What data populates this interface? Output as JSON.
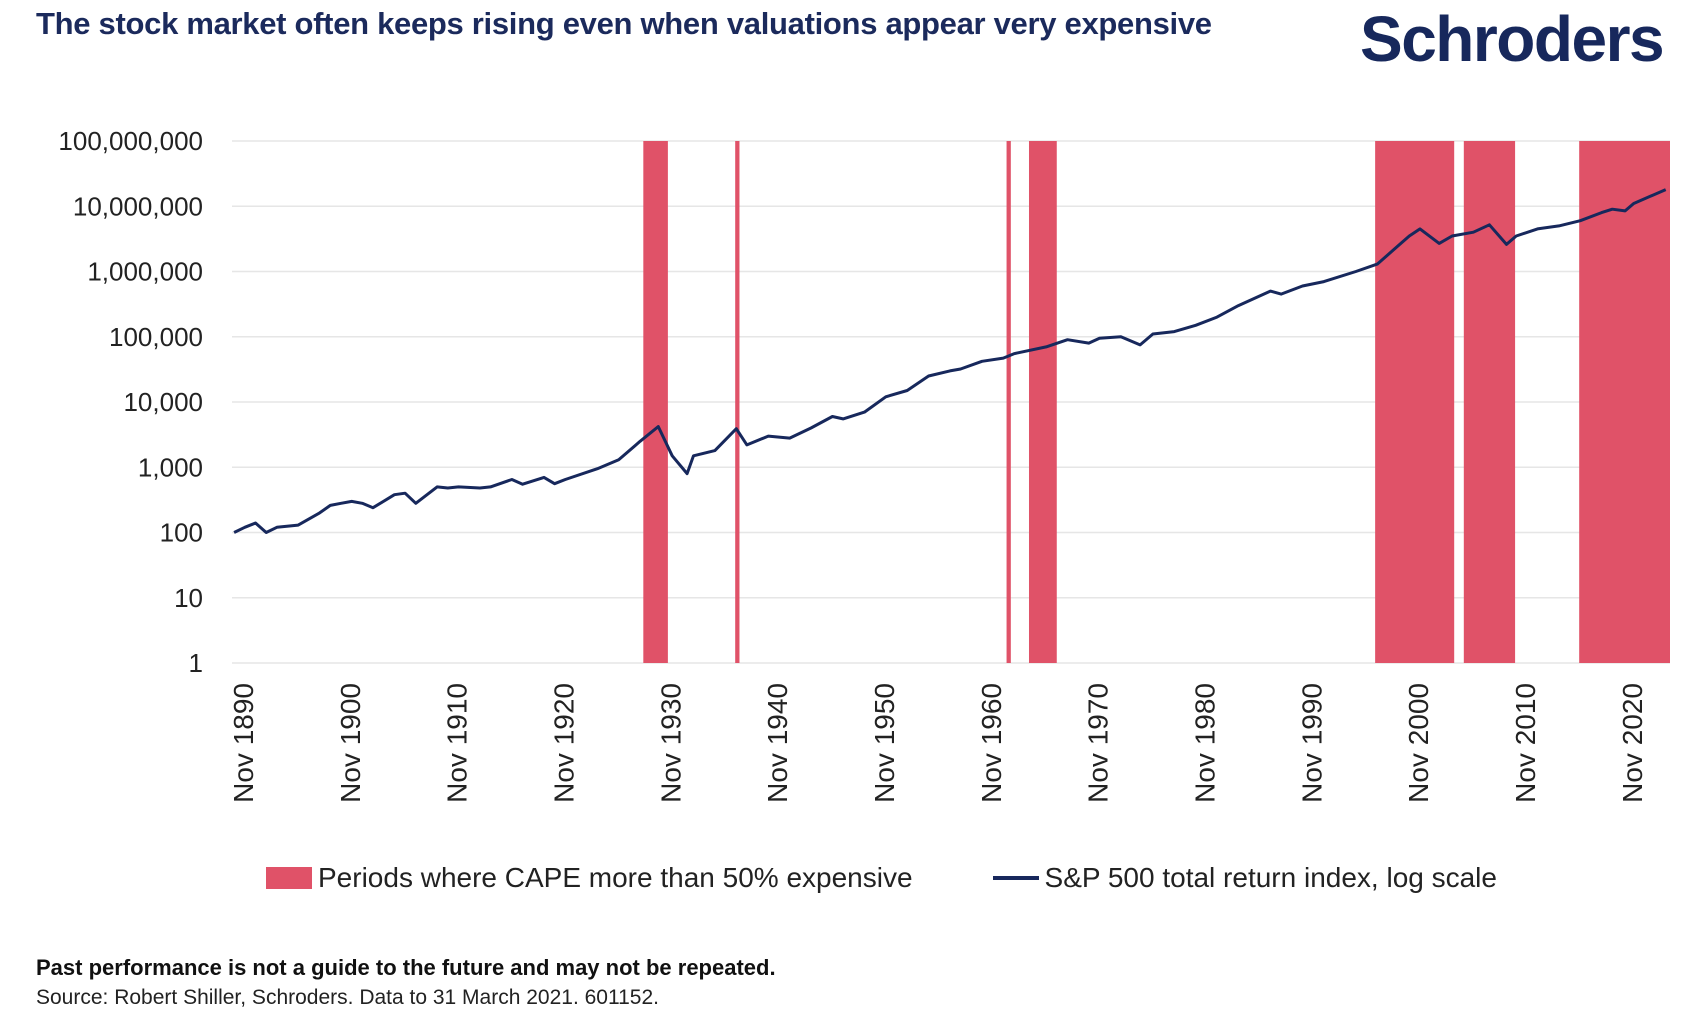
{
  "title": "The stock market often keeps rising even when valuations appear very expensive",
  "brand": "Schroders",
  "colors": {
    "series": "#17285c",
    "shade": "#e05268",
    "grid": "#e6e6e6",
    "title": "#1b2a5c"
  },
  "legend": {
    "shade_label": "Periods where CAPE more than 50% expensive",
    "line_label": "S&P 500 total return index, log scale"
  },
  "footer": {
    "disclaimer": "Past performance is not a guide to the future and may not be repeated.",
    "source": "Source: Robert Shiller, Schroders. Data to 31 March 2021. 601152."
  },
  "chart_data": {
    "type": "line",
    "title": "The stock market often keeps rising even when valuations appear very expensive",
    "y_scale": "log",
    "ylim": [
      1,
      100000000
    ],
    "y_ticks": [
      1,
      10,
      100,
      1000,
      10000,
      100000,
      1000000,
      10000000,
      100000000
    ],
    "y_tick_labels": [
      "1",
      "10",
      "100",
      "1,000",
      "10,000",
      "100,000",
      "1,000,000",
      "10,000,000",
      "100,000,000"
    ],
    "xlim": [
      1889.8,
      2024.4
    ],
    "x_ticks": [
      1890.83,
      1900.83,
      1910.83,
      1920.83,
      1930.83,
      1940.83,
      1950.83,
      1960.83,
      1970.83,
      1980.83,
      1990.83,
      2000.83,
      2010.83,
      2020.83
    ],
    "x_tick_labels": [
      "Nov 1890",
      "Nov 1900",
      "Nov 1910",
      "Nov 1920",
      "Nov 1930",
      "Nov 1940",
      "Nov 1950",
      "Nov 1960",
      "Nov 1970",
      "Nov 1980",
      "Nov 1990",
      "Nov 2000",
      "Nov 2010",
      "Nov 2020"
    ],
    "shaded_periods": [
      {
        "start": 1928.3,
        "end": 1930.6,
        "label": "Periods where CAPE more than 50% expensive"
      },
      {
        "start": 1936.9,
        "end": 1937.3,
        "label": "Periods where CAPE more than 50% expensive"
      },
      {
        "start": 1962.3,
        "end": 1962.7,
        "label": "Periods where CAPE more than 50% expensive"
      },
      {
        "start": 1964.4,
        "end": 1967.0,
        "label": "Periods where CAPE more than 50% expensive"
      },
      {
        "start": 1996.8,
        "end": 2004.2,
        "label": "Periods where CAPE more than 50% expensive"
      },
      {
        "start": 2005.1,
        "end": 2009.9,
        "label": "Periods where CAPE more than 50% expensive"
      },
      {
        "start": 2015.9,
        "end": 2024.4,
        "label": "Periods where CAPE more than 50% expensive"
      }
    ],
    "series": [
      {
        "name": "S&P 500 total return index, log scale",
        "x": [
          1890,
          1891,
          1892,
          1893,
          1894,
          1896,
          1898,
          1899,
          1900,
          1901,
          1902,
          1903,
          1905,
          1906,
          1907,
          1909,
          1910,
          1911,
          1913,
          1914,
          1916,
          1917,
          1919,
          1920,
          1921,
          1924,
          1926,
          1928,
          1929.7,
          1931,
          1932.4,
          1933,
          1935,
          1937,
          1938,
          1940,
          1942,
          1944,
          1946,
          1947,
          1949,
          1951,
          1953,
          1955,
          1957,
          1958,
          1960,
          1962,
          1963,
          1966,
          1968,
          1970,
          1971,
          1973,
          1974.8,
          1976,
          1978,
          1980,
          1982,
          1984,
          1987,
          1988,
          1990,
          1992,
          1995,
          1997,
          2000,
          2001,
          2002.8,
          2004,
          2006,
          2007.5,
          2009.1,
          2010,
          2012,
          2014,
          2016,
          2018,
          2019,
          2020.2,
          2021,
          2024
        ],
        "values": [
          100,
          120,
          140,
          100,
          120,
          130,
          200,
          260,
          280,
          300,
          280,
          240,
          380,
          400,
          280,
          500,
          480,
          500,
          480,
          500,
          650,
          550,
          700,
          560,
          650,
          950,
          1300,
          2500,
          4200,
          1500,
          800,
          1500,
          1800,
          3900,
          2200,
          3000,
          2800,
          4000,
          6000,
          5500,
          7000,
          12000,
          15000,
          25000,
          30000,
          32000,
          42000,
          47000,
          55000,
          70000,
          90000,
          80000,
          95000,
          100000,
          75000,
          110000,
          120000,
          150000,
          200000,
          300000,
          500000,
          450000,
          600000,
          700000,
          1000000,
          1300000,
          3500000,
          4500000,
          2700000,
          3500000,
          4000000,
          5200000,
          2600000,
          3500000,
          4500000,
          5000000,
          6000000,
          8000000,
          9000000,
          8500000,
          11000000,
          18000000
        ]
      }
    ]
  }
}
